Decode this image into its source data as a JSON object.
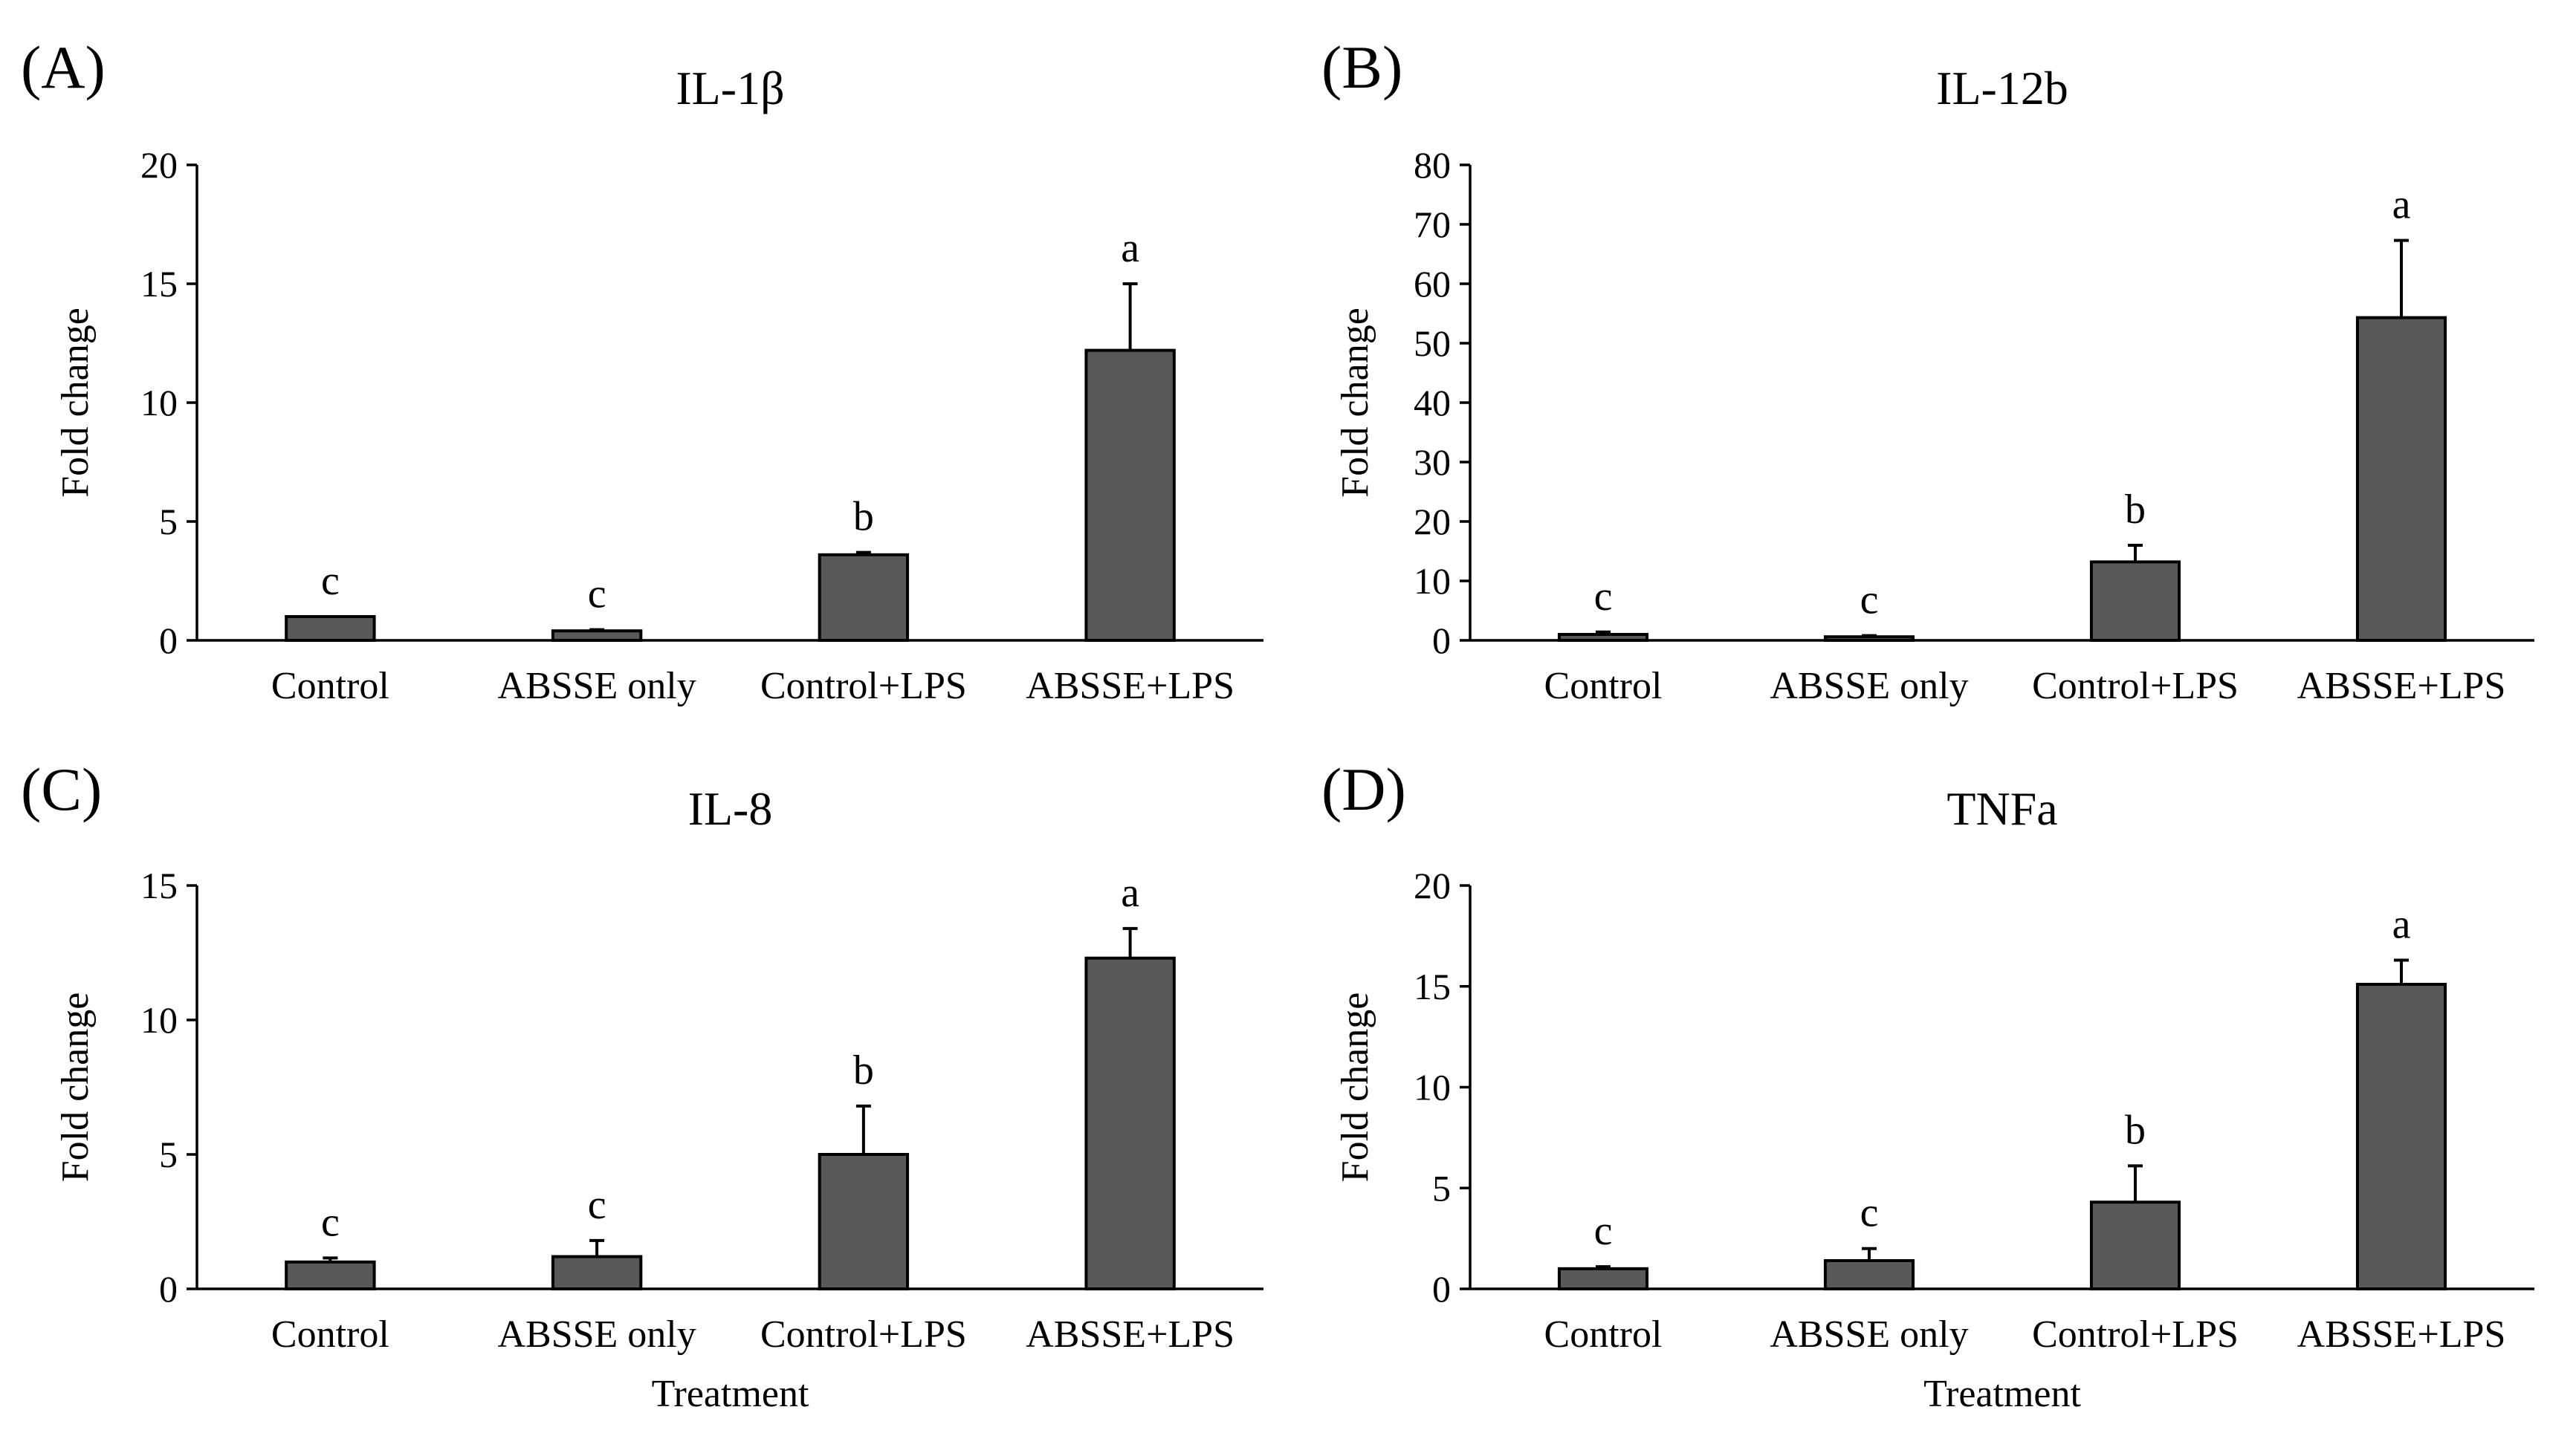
{
  "chart_data": [
    {
      "type": "bar",
      "panel": "(A)",
      "title": "IL-1β",
      "ylabel": "Fold change",
      "xlabel": "",
      "ylim": [
        0,
        20
      ],
      "yticks": [
        0,
        5,
        10,
        15,
        20
      ],
      "categories": [
        "Control",
        "ABSSE only",
        "Control+LPS",
        "ABSSE+LPS"
      ],
      "values": [
        1.0,
        0.4,
        3.6,
        12.2
      ],
      "errors": [
        0.0,
        0.05,
        0.1,
        2.8
      ],
      "letters": [
        "c",
        "c",
        "b",
        "a"
      ],
      "bar_color": "#595959"
    },
    {
      "type": "bar",
      "panel": "(B)",
      "title": "IL-12b",
      "ylabel": "Fold change",
      "xlabel": "",
      "ylim": [
        0,
        80
      ],
      "yticks": [
        0,
        10,
        20,
        30,
        40,
        50,
        60,
        70,
        80
      ],
      "categories": [
        "Control",
        "ABSSE only",
        "Control+LPS",
        "ABSSE+LPS"
      ],
      "values": [
        1.0,
        0.6,
        13.2,
        54.3
      ],
      "errors": [
        0.4,
        0.2,
        2.8,
        13.0
      ],
      "letters": [
        "c",
        "c",
        "b",
        "a"
      ],
      "bar_color": "#595959"
    },
    {
      "type": "bar",
      "panel": "(C)",
      "title": "IL-8",
      "ylabel": "Fold change",
      "xlabel": "Treatment",
      "ylim": [
        0,
        15
      ],
      "yticks": [
        0,
        5,
        10,
        15
      ],
      "categories": [
        "Control",
        "ABSSE only",
        "Control+LPS",
        "ABSSE+LPS"
      ],
      "values": [
        1.0,
        1.2,
        5.0,
        12.3
      ],
      "errors": [
        0.15,
        0.6,
        1.8,
        1.1
      ],
      "letters": [
        "c",
        "c",
        "b",
        "a"
      ],
      "bar_color": "#595959"
    },
    {
      "type": "bar",
      "panel": "(D)",
      "title": "TNFa",
      "ylabel": "Fold change",
      "xlabel": "Treatment",
      "ylim": [
        0,
        20
      ],
      "yticks": [
        0,
        5,
        10,
        15,
        20
      ],
      "categories": [
        "Control",
        "ABSSE only",
        "Control+LPS",
        "ABSSE+LPS"
      ],
      "values": [
        1.0,
        1.4,
        4.3,
        15.1
      ],
      "errors": [
        0.1,
        0.6,
        1.8,
        1.2
      ],
      "letters": [
        "c",
        "c",
        "b",
        "a"
      ],
      "bar_color": "#595959"
    }
  ]
}
